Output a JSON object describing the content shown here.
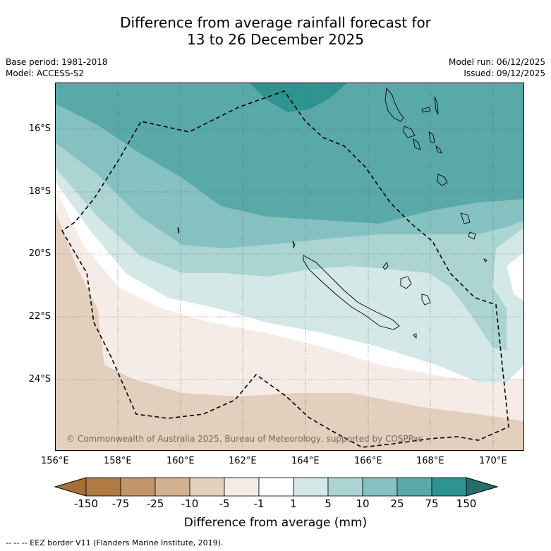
{
  "title_line1": "Difference from average rainfall forecast for",
  "title_line2": "13 to 26 December 2025",
  "meta": {
    "base_period": "Base period: 1981-2018",
    "model": "Model: ACCESS-S2",
    "model_run": "Model run: 06/12/2025",
    "issued": "Issued: 09/12/2025"
  },
  "map": {
    "lon_labels": [
      "156°E",
      "158°E",
      "160°E",
      "162°E",
      "164°E",
      "166°E",
      "168°E",
      "170°E"
    ],
    "lat_labels": [
      "16°S",
      "18°S",
      "20°S",
      "22°S",
      "24°S"
    ],
    "copyright": "© Commonwealth of Australia 2025, Bureau of Meteorology, supported by COSPPac"
  },
  "colorbar": {
    "labels": [
      "-150",
      "-75",
      "-25",
      "-10",
      "-5",
      "-1",
      "1",
      "5",
      "10",
      "25",
      "75",
      "150"
    ],
    "colors": [
      "#a66f3a",
      "#b07a45",
      "#c29468",
      "#d2b190",
      "#e3cfbd",
      "#f5ece7",
      "#ffffff",
      "#d3e8e7",
      "#abd4d3",
      "#85c1c0",
      "#5aa9a9",
      "#2e9490",
      "#246e6c"
    ],
    "title": "Difference from average (mm)"
  },
  "footer": "--  --  -- EEZ border V11 (Flanders Marine Institute, 2019)."
}
